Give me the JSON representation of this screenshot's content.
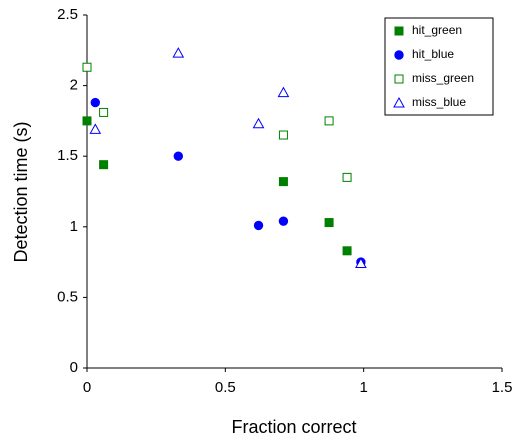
{
  "chart_data": {
    "type": "scatter",
    "x_label": "Fraction correct",
    "y_label": "Detection time (s)",
    "xlim": [
      0,
      1.5
    ],
    "xticks": [
      0,
      0.5,
      1,
      1.5
    ],
    "ylim": [
      0,
      2.5
    ],
    "yticks": [
      0,
      0.5,
      1,
      1.5,
      2,
      2.5
    ],
    "grid": false,
    "legend": "upper right",
    "series": [
      {
        "name": "hit_green",
        "color": "#008000",
        "marker": "square",
        "filled": true,
        "x": [
          0,
          0.06,
          0.71,
          0.875,
          0.94
        ],
        "values": [
          1.75,
          1.44,
          1.32,
          1.03,
          0.83
        ]
      },
      {
        "name": "hit_blue",
        "color": "#0000ff",
        "marker": "circle",
        "filled": true,
        "x": [
          0.03,
          0.33,
          0.62,
          0.71,
          0.99
        ],
        "values": [
          1.88,
          1.5,
          1.01,
          1.04,
          0.75
        ]
      },
      {
        "name": "miss_green",
        "color": "#008000",
        "marker": "square",
        "filled": false,
        "x": [
          0,
          0.06,
          0.71,
          0.875,
          0.94
        ],
        "values": [
          2.13,
          1.81,
          1.65,
          1.75,
          1.35
        ]
      },
      {
        "name": "miss_blue",
        "color": "#0000ff",
        "marker": "triangle",
        "filled": false,
        "x": [
          0.03,
          0.33,
          0.62,
          0.71,
          0.99
        ],
        "values": [
          1.69,
          2.23,
          1.73,
          1.95,
          0.74
        ]
      }
    ]
  }
}
